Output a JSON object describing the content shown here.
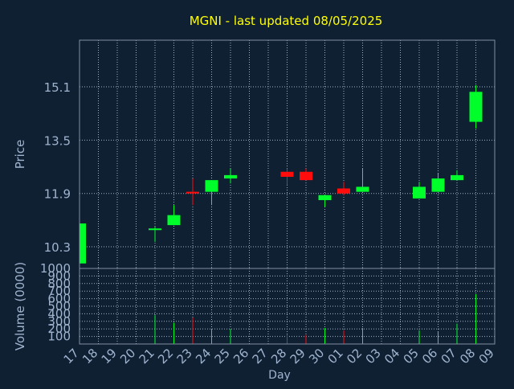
{
  "chart_data": {
    "type": "candlestick",
    "title": "MGNI - last updated 08/05/2025",
    "price_panel": {
      "ylabel": "Price",
      "yticks": [
        10.3,
        11.9,
        13.5,
        15.1
      ],
      "ylim": [
        9.65,
        16.5
      ],
      "grid": true
    },
    "volume_panel": {
      "ylabel": "Volume (0000)",
      "yticks": [
        100,
        200,
        300,
        400,
        500,
        600,
        700,
        800,
        900,
        1000
      ],
      "ylim": [
        0,
        1000
      ],
      "grid": true
    },
    "xlabel": "Day",
    "x_ticks": [
      "17",
      "18",
      "19",
      "20",
      "21",
      "22",
      "23",
      "24",
      "25",
      "26",
      "27",
      "28",
      "29",
      "30",
      "01",
      "02",
      "03",
      "04",
      "05",
      "06",
      "07",
      "08",
      "09"
    ],
    "candles": [
      {
        "day": "17",
        "open": 9.8,
        "high": 11.1,
        "low": 9.8,
        "close": 11.0,
        "volume": 0
      },
      {
        "day": "21",
        "open": 10.85,
        "high": 10.9,
        "low": 10.45,
        "close": 10.85,
        "volume": 380
      },
      {
        "day": "22",
        "open": 10.95,
        "high": 11.55,
        "low": 10.95,
        "close": 11.25,
        "volume": 280
      },
      {
        "day": "23",
        "open": 11.95,
        "high": 12.35,
        "low": 11.55,
        "close": 11.9,
        "volume": 350
      },
      {
        "day": "24",
        "open": 11.95,
        "high": 12.3,
        "low": 11.55,
        "close": 12.3,
        "volume": 190
      },
      {
        "day": "25",
        "open": 12.35,
        "high": 12.65,
        "low": 12.2,
        "close": 12.45,
        "volume": 200
      },
      {
        "day": "28",
        "open": 12.55,
        "high": 12.65,
        "low": 12.15,
        "close": 12.4,
        "volume": 130
      },
      {
        "day": "29",
        "open": 12.55,
        "high": 12.65,
        "low": 12.3,
        "close": 12.3,
        "volume": 120
      },
      {
        "day": "30",
        "open": 11.7,
        "high": 11.85,
        "low": 11.5,
        "close": 11.85,
        "volume": 210
      },
      {
        "day": "01",
        "open": 12.05,
        "high": 12.25,
        "low": 11.85,
        "close": 11.9,
        "volume": 180
      },
      {
        "day": "02",
        "open": 11.95,
        "high": 12.65,
        "low": 11.95,
        "close": 12.1,
        "volume": 210
      },
      {
        "day": "05",
        "open": 11.75,
        "high": 12.25,
        "low": 11.75,
        "close": 12.1,
        "volume": 180
      },
      {
        "day": "06",
        "open": 11.95,
        "high": 12.5,
        "low": 11.95,
        "close": 12.35,
        "volume": 170
      },
      {
        "day": "07",
        "open": 12.3,
        "high": 12.6,
        "low": 12.3,
        "close": 12.45,
        "volume": 270
      },
      {
        "day": "08",
        "open": 14.05,
        "high": 15.15,
        "low": 13.85,
        "close": 14.95,
        "volume": 660
      }
    ],
    "colors": {
      "up": "#00ff2a",
      "down": "#ff0d0d",
      "background": "#102033",
      "grid": "#9fb0c4",
      "axis_text": "#9fb4cf",
      "title": "#ffff00",
      "frame": "#8090a0"
    }
  }
}
